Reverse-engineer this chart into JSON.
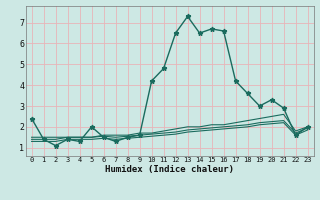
{
  "xlabel": "Humidex (Indice chaleur)",
  "ylabel": "",
  "bg_color": "#cde8e4",
  "grid_color": "#e8b4b8",
  "line_color": "#1a6b5e",
  "xlim": [
    -0.5,
    23.5
  ],
  "ylim": [
    0.6,
    7.8
  ],
  "xticks": [
    0,
    1,
    2,
    3,
    4,
    5,
    6,
    7,
    8,
    9,
    10,
    11,
    12,
    13,
    14,
    15,
    16,
    17,
    18,
    19,
    20,
    21,
    22,
    23
  ],
  "yticks": [
    1,
    2,
    3,
    4,
    5,
    6,
    7
  ],
  "series": [
    {
      "x": [
        0,
        1,
        2,
        3,
        4,
        5,
        6,
        7,
        8,
        9,
        10,
        11,
        12,
        13,
        14,
        15,
        16,
        17,
        18,
        19,
        20,
        21,
        22,
        23
      ],
      "y": [
        2.4,
        1.4,
        1.1,
        1.4,
        1.3,
        2.0,
        1.5,
        1.3,
        1.5,
        1.6,
        4.2,
        4.8,
        6.5,
        7.3,
        6.5,
        6.7,
        6.6,
        4.2,
        3.6,
        3.0,
        3.3,
        2.9,
        1.6,
        2.0
      ],
      "marker": "*",
      "linestyle": "-",
      "linewidth": 1.0
    },
    {
      "x": [
        0,
        1,
        2,
        3,
        4,
        5,
        6,
        7,
        8,
        9,
        10,
        11,
        12,
        13,
        14,
        15,
        16,
        17,
        18,
        19,
        20,
        21,
        22,
        23
      ],
      "y": [
        1.5,
        1.5,
        1.5,
        1.5,
        1.5,
        1.5,
        1.6,
        1.6,
        1.6,
        1.7,
        1.7,
        1.8,
        1.9,
        2.0,
        2.0,
        2.1,
        2.1,
        2.2,
        2.3,
        2.4,
        2.5,
        2.6,
        1.8,
        2.0
      ],
      "marker": null,
      "linestyle": "-",
      "linewidth": 0.8
    },
    {
      "x": [
        0,
        1,
        2,
        3,
        4,
        5,
        6,
        7,
        8,
        9,
        10,
        11,
        12,
        13,
        14,
        15,
        16,
        17,
        18,
        19,
        20,
        21,
        22,
        23
      ],
      "y": [
        1.4,
        1.4,
        1.4,
        1.5,
        1.5,
        1.5,
        1.55,
        1.5,
        1.55,
        1.6,
        1.65,
        1.7,
        1.75,
        1.85,
        1.9,
        1.95,
        2.0,
        2.05,
        2.1,
        2.2,
        2.25,
        2.3,
        1.7,
        1.95
      ],
      "marker": null,
      "linestyle": "-",
      "linewidth": 0.8
    },
    {
      "x": [
        0,
        1,
        2,
        3,
        4,
        5,
        6,
        7,
        8,
        9,
        10,
        11,
        12,
        13,
        14,
        15,
        16,
        17,
        18,
        19,
        20,
        21,
        22,
        23
      ],
      "y": [
        1.3,
        1.3,
        1.3,
        1.4,
        1.4,
        1.4,
        1.45,
        1.4,
        1.45,
        1.5,
        1.55,
        1.6,
        1.65,
        1.75,
        1.8,
        1.85,
        1.9,
        1.95,
        2.0,
        2.1,
        2.15,
        2.2,
        1.6,
        1.85
      ],
      "marker": null,
      "linestyle": "-",
      "linewidth": 0.8
    }
  ]
}
